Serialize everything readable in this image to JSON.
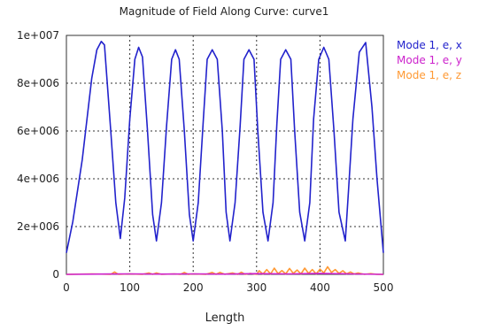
{
  "chart_data": {
    "type": "line",
    "title": "Magnitude of Field Along Curve: curve1",
    "xlabel": "Length",
    "ylabel": "",
    "xlim": [
      0,
      500
    ],
    "ylim": [
      0,
      10000000
    ],
    "x_ticks": [
      0,
      100,
      200,
      300,
      400,
      500
    ],
    "x_tick_labels": [
      "0",
      "100",
      "200",
      "300",
      "400",
      "500"
    ],
    "y_ticks": [
      0,
      2000000,
      4000000,
      6000000,
      8000000,
      10000000
    ],
    "y_tick_labels": [
      "0",
      "2e+006",
      "4e+006",
      "6e+006",
      "8e+006",
      "1e+007"
    ],
    "grid": true,
    "legend_position": "right",
    "series": [
      {
        "name": "Mode 1, e, x",
        "color": "#2222cc",
        "x": [
          0,
          10,
          25,
          40,
          48,
          55,
          60,
          70,
          78,
          85,
          92,
          100,
          108,
          114,
          120,
          128,
          136,
          142,
          150,
          158,
          166,
          172,
          178,
          186,
          194,
          200,
          208,
          216,
          222,
          230,
          238,
          246,
          252,
          258,
          266,
          274,
          280,
          288,
          296,
          302,
          310,
          318,
          326,
          332,
          338,
          346,
          354,
          360,
          368,
          376,
          384,
          390,
          398,
          406,
          414,
          422,
          430,
          440,
          445,
          452,
          462,
          472,
          482,
          490,
          500
        ],
        "y": [
          900000,
          2200000,
          4800000,
          8200000,
          9400000,
          9750000,
          9600000,
          6000000,
          3000000,
          1500000,
          3200000,
          6500000,
          9000000,
          9500000,
          9100000,
          6000000,
          2500000,
          1400000,
          3000000,
          6200000,
          9000000,
          9400000,
          9000000,
          6000000,
          2500000,
          1400000,
          3000000,
          6500000,
          9000000,
          9400000,
          9000000,
          6000000,
          2600000,
          1400000,
          3000000,
          6200000,
          9000000,
          9400000,
          9000000,
          6000000,
          2600000,
          1400000,
          3000000,
          6300000,
          9000000,
          9400000,
          9000000,
          6000000,
          2600000,
          1400000,
          3000000,
          6500000,
          9000000,
          9500000,
          9000000,
          6000000,
          2600000,
          1400000,
          3500000,
          6500000,
          9300000,
          9700000,
          7000000,
          4000000,
          900000
        ]
      },
      {
        "name": "Mode 1, e, y",
        "color": "#cc22cc",
        "x": [
          0,
          50,
          100,
          150,
          200,
          250,
          300,
          350,
          400,
          450,
          500
        ],
        "y": [
          0,
          10000,
          20000,
          10000,
          20000,
          10000,
          30000,
          20000,
          40000,
          20000,
          0
        ]
      },
      {
        "name": "Mode 1, e, z",
        "color": "#ff9933",
        "x": [
          0,
          40,
          70,
          76,
          82,
          100,
          120,
          130,
          136,
          142,
          150,
          170,
          180,
          186,
          192,
          200,
          220,
          230,
          236,
          242,
          250,
          262,
          270,
          276,
          282,
          290,
          300,
          304,
          310,
          316,
          322,
          328,
          334,
          340,
          346,
          352,
          358,
          364,
          370,
          376,
          382,
          388,
          394,
          400,
          406,
          412,
          418,
          424,
          430,
          436,
          442,
          448,
          454,
          460,
          470,
          480,
          490,
          500
        ],
        "y": [
          0,
          20000,
          0,
          100000,
          0,
          20000,
          0,
          60000,
          0,
          60000,
          0,
          20000,
          0,
          80000,
          0,
          20000,
          0,
          80000,
          0,
          80000,
          0,
          60000,
          0,
          90000,
          0,
          40000,
          0,
          150000,
          10000,
          200000,
          20000,
          260000,
          30000,
          160000,
          20000,
          250000,
          40000,
          180000,
          20000,
          260000,
          40000,
          200000,
          20000,
          220000,
          60000,
          320000,
          80000,
          200000,
          40000,
          150000,
          20000,
          100000,
          10000,
          60000,
          0,
          30000,
          0,
          0
        ]
      }
    ]
  }
}
